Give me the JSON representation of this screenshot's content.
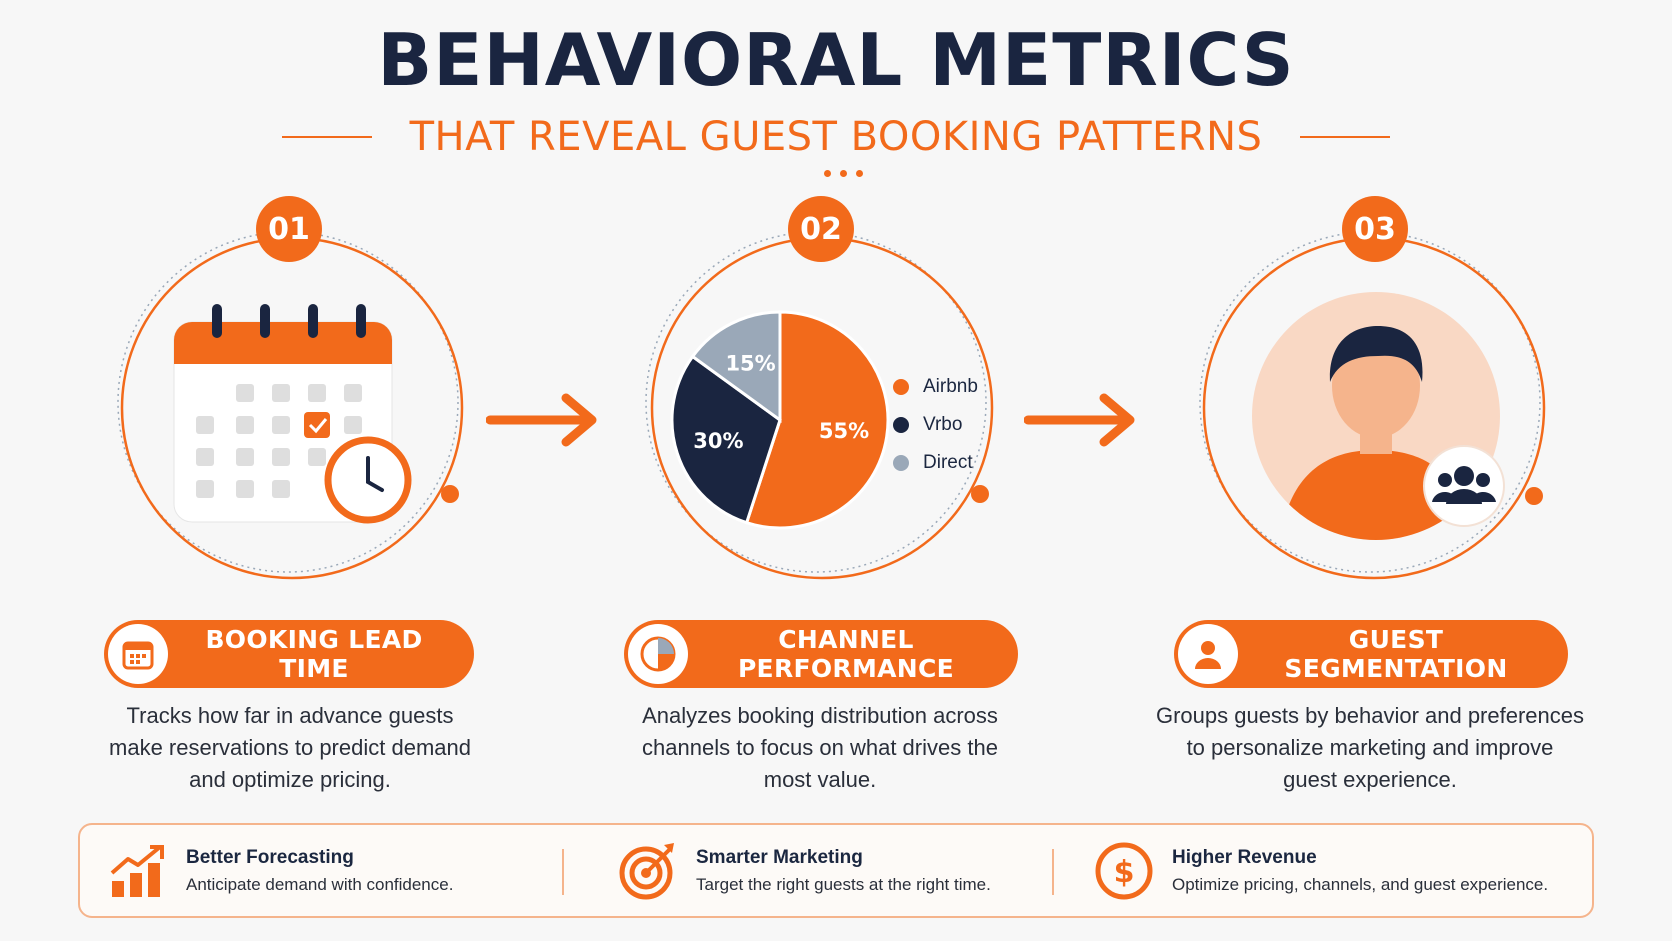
{
  "title": "BEHAVIORAL METRICS",
  "subtitle": "THAT REVEAL GUEST BOOKING PATTERNS",
  "colors": {
    "accent": "#f26a1b",
    "navy": "#1a2540",
    "gray": "#9aa8b8"
  },
  "steps": [
    {
      "number": "01",
      "label": "BOOKING LEAD TIME",
      "icon": "calendar-icon",
      "description": [
        "Tracks how far in advance guests",
        "make reservations to predict demand",
        "and optimize pricing."
      ]
    },
    {
      "number": "02",
      "label": "CHANNEL PERFORMANCE",
      "icon": "pie-chart-icon",
      "description": [
        "Analyzes booking distribution across",
        "channels to focus on what drives the",
        "most value."
      ]
    },
    {
      "number": "03",
      "label": "GUEST SEGMENTATION",
      "icon": "user-icon",
      "description": [
        "Groups guests by behavior and preferences",
        "to personalize marketing and improve",
        "guest experience."
      ]
    }
  ],
  "chart_data": {
    "type": "pie",
    "categories": [
      "Airbnb",
      "Vrbo",
      "Direct"
    ],
    "values": [
      55,
      30,
      15
    ],
    "labels": [
      "55%",
      "30%",
      "15%"
    ],
    "colors": [
      "#f26a1b",
      "#1a2540",
      "#9aa8b8"
    ],
    "legend_position": "right"
  },
  "benefits": [
    {
      "title": "Better Forecasting",
      "text": "Anticipate demand with confidence.",
      "icon": "bar-chart-growth-icon"
    },
    {
      "title": "Smarter Marketing",
      "text": "Target the right guests at the right time.",
      "icon": "target-icon"
    },
    {
      "title": "Higher Revenue",
      "text": "Optimize pricing, channels, and guest experience.",
      "icon": "dollar-icon"
    }
  ]
}
